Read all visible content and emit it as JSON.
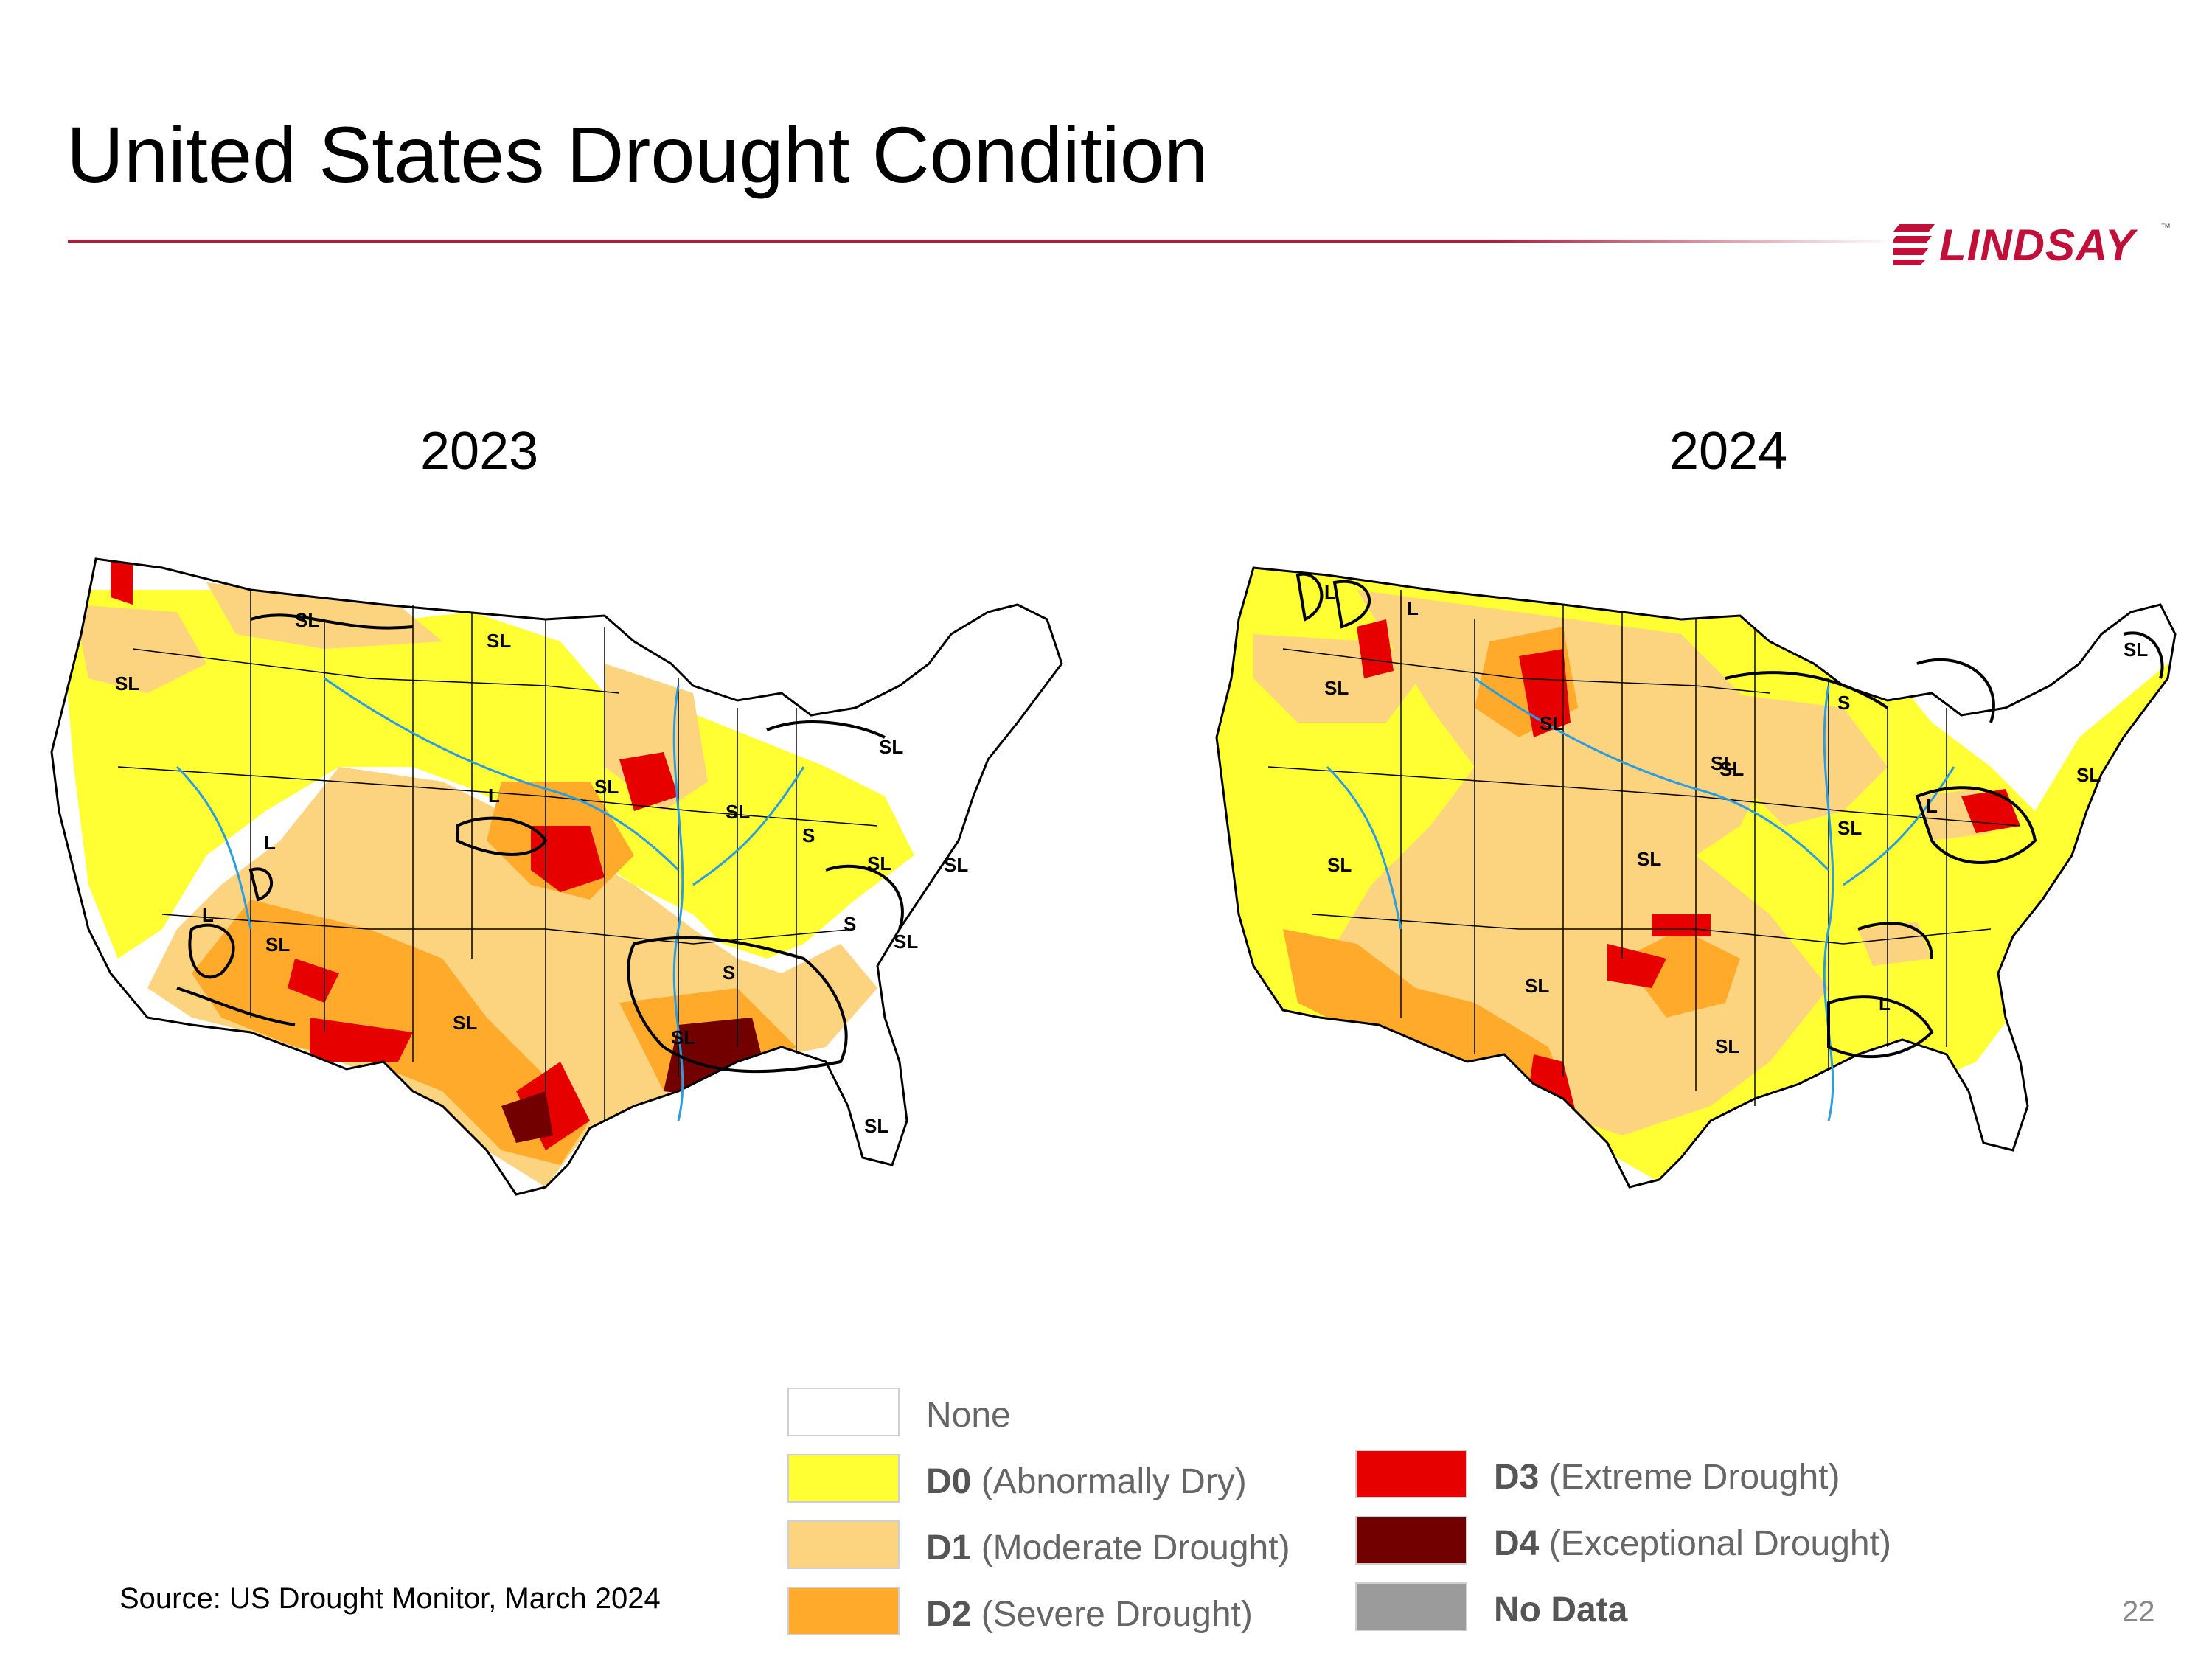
{
  "title": "United States Drought Condition",
  "logo": {
    "text": "LINDSAY",
    "tm": "™",
    "color": "#c0103a"
  },
  "maps": [
    {
      "year": "2023",
      "impact_labels": [
        "SL",
        "SL",
        "SL",
        "SL",
        "L",
        "SL",
        "L",
        "L",
        "SL",
        "SL",
        "SL",
        "S",
        "SL",
        "S",
        "SL",
        "S",
        "SL",
        "SL",
        "SL"
      ]
    },
    {
      "year": "2024",
      "impact_labels": [
        "L",
        "L",
        "SL",
        "SL",
        "SL",
        "S",
        "SL",
        "L",
        "SL",
        "SL",
        "SL",
        "SL",
        "SL",
        "SL",
        "L",
        "SL"
      ]
    }
  ],
  "legend": [
    {
      "code": "",
      "desc": "None",
      "color": "#ffffff"
    },
    {
      "code": "D0",
      "desc": " (Abnormally Dry)",
      "color": "#ffff33"
    },
    {
      "code": "D1",
      "desc": " (Moderate Drought)",
      "color": "#fcd37f"
    },
    {
      "code": "D2",
      "desc": " (Severe Drought)",
      "color": "#ffaa2a"
    },
    {
      "code": "D3",
      "desc": " (Extreme Drought)",
      "color": "#e60000"
    },
    {
      "code": "D4",
      "desc": " (Exceptional Drought)",
      "color": "#730000"
    },
    {
      "code": "",
      "desc": "No Data",
      "color": "#9b9b9b"
    }
  ],
  "source": "Source: US Drought Monitor, March 2024",
  "page_number": "22"
}
